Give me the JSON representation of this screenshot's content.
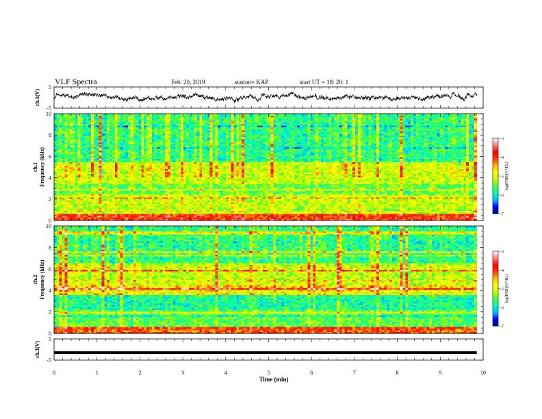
{
  "header": {
    "title": "VLF Spectra",
    "date": "Feb. 20, 2019",
    "station": "station= KAP",
    "start_time": "start  UT  =   18: 20: 1"
  },
  "chart_data": [
    {
      "type": "line",
      "panel": "ch1-waveform",
      "ylabel": "ch.1(V)",
      "ylim": [
        -5,
        5
      ],
      "yticks": [
        "5",
        "-5"
      ],
      "xlim": [
        0,
        10
      ],
      "series": [
        {
          "values": "noisy waveform, mostly between -2 and 2 V, data ends near 9.85 min"
        }
      ]
    },
    {
      "type": "heatmap",
      "panel": "ch1-spectrogram",
      "ylabel": "ch.1\nFrequency  (kHz)",
      "ylim": [
        0,
        10
      ],
      "yticks": [
        "0",
        "2",
        "4",
        "6",
        "8",
        "10"
      ],
      "xlim": [
        0,
        10
      ],
      "colorbar": {
        "label": "log(PSD)(V²/Hz)",
        "range": [
          -7,
          -3
        ],
        "ticks": [
          "-3",
          "-4",
          "-5",
          "-6",
          "-7"
        ]
      }
    },
    {
      "type": "heatmap",
      "panel": "ch2-spectrogram",
      "ylabel": "ch.2\nFrequency  (kHz)",
      "ylim": [
        0,
        10
      ],
      "yticks": [
        "0",
        "2",
        "4",
        "6",
        "8",
        "10"
      ],
      "xlim": [
        0,
        10
      ],
      "colorbar": {
        "label": "log(PSD)(V²/Hz)",
        "range": [
          -7,
          -3
        ],
        "ticks": [
          "-3",
          "-4",
          "-5",
          "-6",
          "-7"
        ]
      }
    },
    {
      "type": "line",
      "panel": "ch3-waveform",
      "ylabel": "ch.3(V)",
      "ylim": [
        -5,
        5
      ],
      "yticks": [
        "5",
        "-5"
      ],
      "xlim": [
        0,
        10
      ],
      "series": [
        {
          "values": "flat line near -1.5 V from 0 to 9.85 min"
        }
      ]
    }
  ],
  "x_axis": {
    "label": "Time  (min)",
    "ticks": [
      "0",
      "1",
      "2",
      "3",
      "4",
      "5",
      "6",
      "7",
      "8",
      "9",
      "10"
    ]
  },
  "colors": {
    "colormap": [
      "#00007f",
      "#0000ff",
      "#00bfff",
      "#00ffbf",
      "#40ff40",
      "#bfff00",
      "#ffff00",
      "#ffbf00",
      "#ff4000",
      "#ff0000",
      "#ff8080",
      "#ffffff"
    ]
  }
}
